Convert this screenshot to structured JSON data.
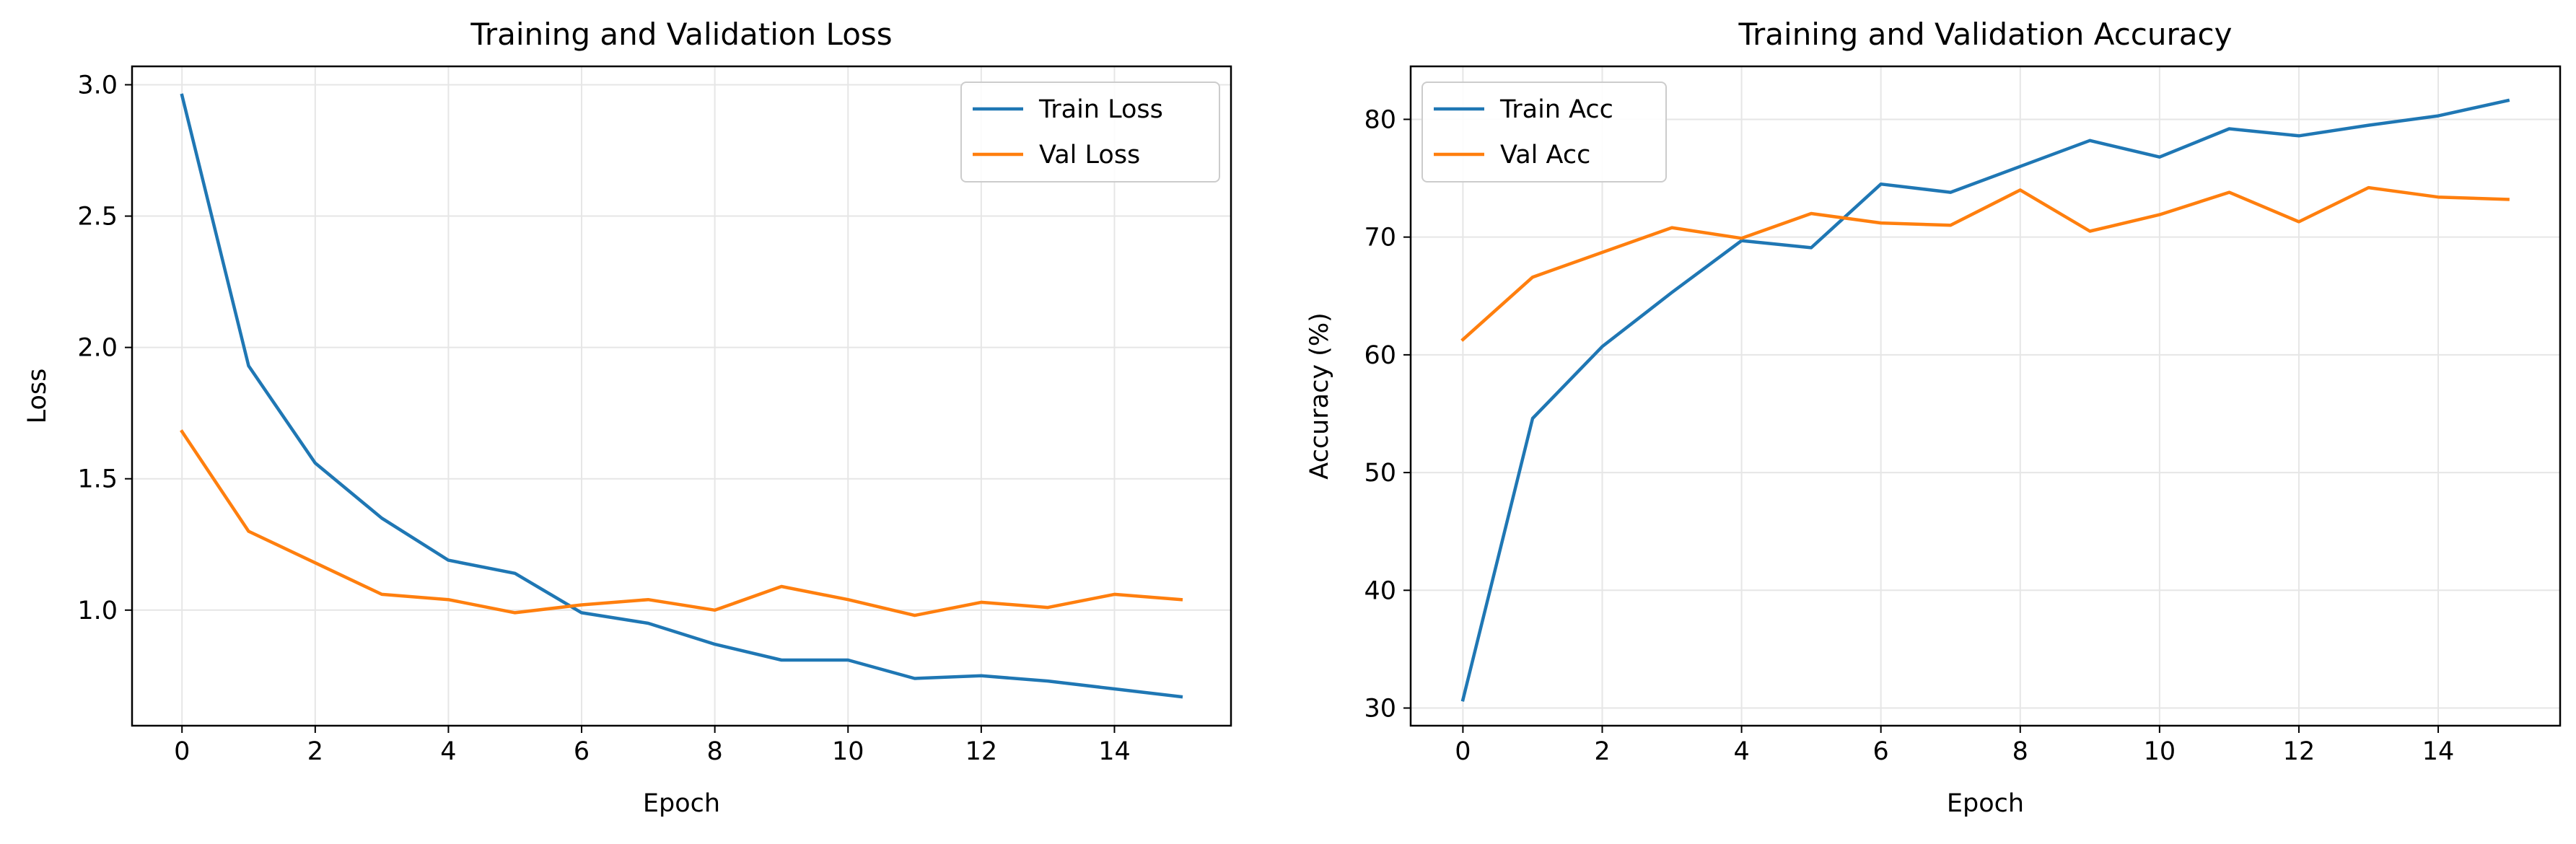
{
  "colors": {
    "train": "#1f77b4",
    "val": "#ff7f0e",
    "grid": "#e6e6e6",
    "axes": "#000000",
    "legend_border": "#cccccc"
  },
  "chart_data": [
    {
      "type": "line",
      "title": "Training and Validation Loss",
      "xlabel": "Epoch",
      "ylabel": "Loss",
      "xlim": [
        -0.75,
        15.75
      ],
      "ylim": [
        0.56,
        3.07
      ],
      "xticks": [
        0,
        2,
        4,
        6,
        8,
        10,
        12,
        14
      ],
      "yticks": [
        1.0,
        1.5,
        2.0,
        2.5,
        3.0
      ],
      "ytick_labels": [
        "1.0",
        "1.5",
        "2.0",
        "2.5",
        "3.0"
      ],
      "grid": true,
      "legend_position": "upper-right",
      "x": [
        0,
        1,
        2,
        3,
        4,
        5,
        6,
        7,
        8,
        9,
        10,
        11,
        12,
        13,
        14,
        15
      ],
      "series": [
        {
          "name": "Train Loss",
          "color": "#1f77b4",
          "values": [
            2.96,
            1.93,
            1.56,
            1.35,
            1.19,
            1.14,
            0.99,
            0.95,
            0.87,
            0.81,
            0.81,
            0.74,
            0.75,
            0.73,
            0.7,
            0.67
          ]
        },
        {
          "name": "Val Loss",
          "color": "#ff7f0e",
          "values": [
            1.68,
            1.3,
            1.18,
            1.06,
            1.04,
            0.99,
            1.02,
            1.04,
            1.0,
            1.09,
            1.04,
            0.98,
            1.03,
            1.01,
            1.06,
            1.04
          ]
        }
      ]
    },
    {
      "type": "line",
      "title": "Training and Validation Accuracy",
      "xlabel": "Epoch",
      "ylabel": "Accuracy (%)",
      "xlim": [
        -0.75,
        15.75
      ],
      "ylim": [
        28.5,
        84.5
      ],
      "xticks": [
        0,
        2,
        4,
        6,
        8,
        10,
        12,
        14
      ],
      "yticks": [
        30,
        40,
        50,
        60,
        70,
        80
      ],
      "ytick_labels": [
        "30",
        "40",
        "50",
        "60",
        "70",
        "80"
      ],
      "grid": true,
      "legend_position": "upper-left",
      "x": [
        0,
        1,
        2,
        3,
        4,
        5,
        6,
        7,
        8,
        9,
        10,
        11,
        12,
        13,
        14,
        15
      ],
      "series": [
        {
          "name": "Train Acc",
          "color": "#1f77b4",
          "values": [
            30.7,
            54.6,
            60.7,
            65.3,
            69.7,
            69.1,
            74.5,
            73.8,
            76.0,
            78.2,
            76.8,
            79.2,
            78.6,
            79.5,
            80.3,
            81.6
          ]
        },
        {
          "name": "Val Acc",
          "color": "#ff7f0e",
          "values": [
            61.3,
            66.6,
            68.7,
            70.8,
            69.9,
            72.0,
            71.2,
            71.0,
            74.0,
            70.5,
            71.9,
            73.8,
            71.3,
            74.2,
            73.4,
            73.2
          ]
        }
      ]
    }
  ]
}
